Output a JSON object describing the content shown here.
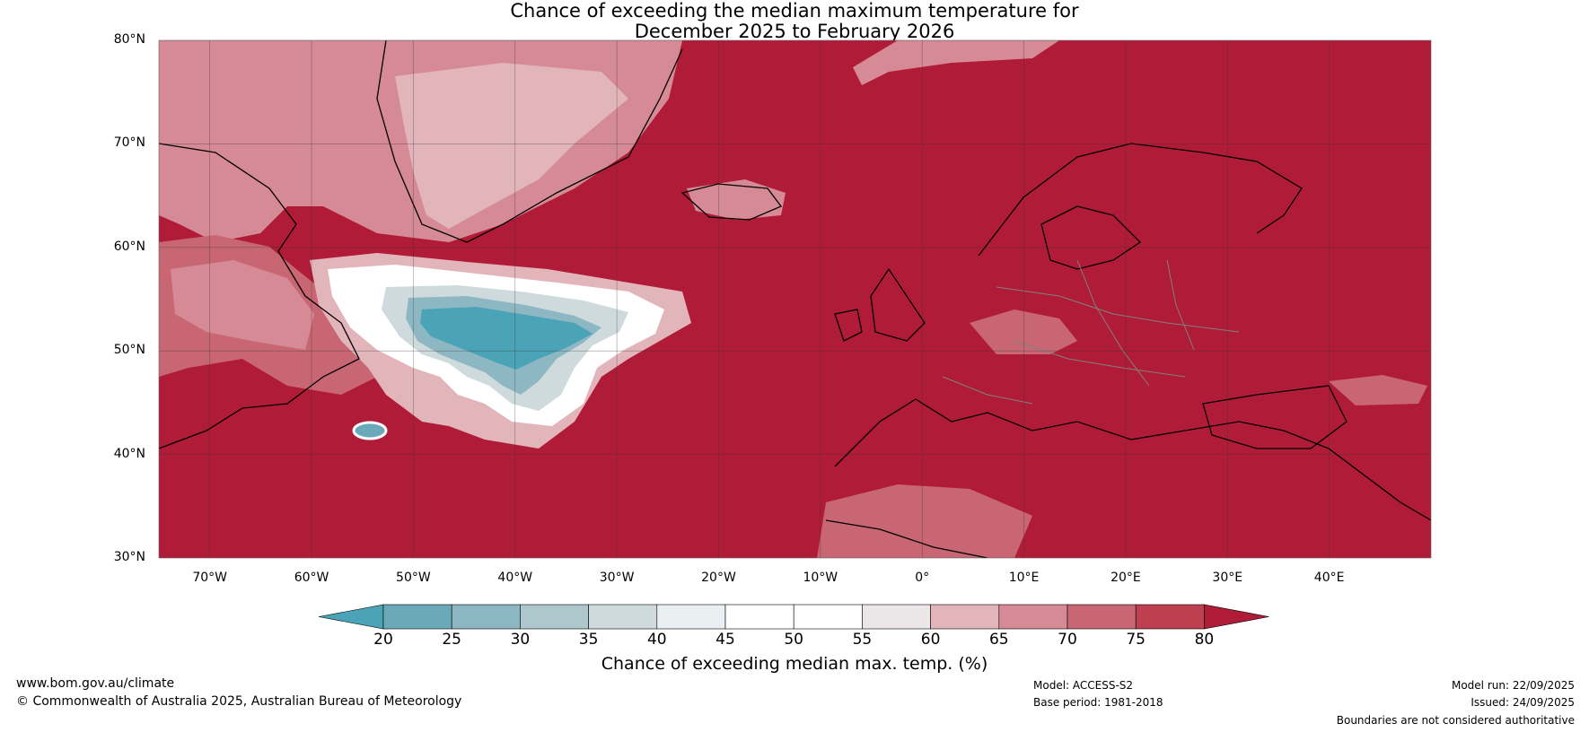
{
  "title": {
    "line1": "Chance of exceeding the median maximum temperature for",
    "line2": "December 2025 to February 2026"
  },
  "map": {
    "region": "North Atlantic and Europe",
    "lat_labels": [
      "80°N",
      "70°N",
      "60°N",
      "50°N",
      "40°N",
      "30°N"
    ],
    "lon_labels": [
      "70°W",
      "60°W",
      "50°W",
      "40°W",
      "30°W",
      "20°W",
      "10°W",
      "0°",
      "10°E",
      "20°E",
      "30°E",
      "40°E"
    ],
    "lat_range": [
      30,
      80
    ],
    "lon_range": [
      -75,
      50
    ],
    "background_color": "#b01c37",
    "coast_color": "#000000",
    "border_color": "#808080"
  },
  "colorbar": {
    "ticks": [
      "20",
      "25",
      "30",
      "35",
      "40",
      "45",
      "50",
      "55",
      "60",
      "65",
      "70",
      "75",
      "80"
    ],
    "colors": [
      "#4aa3b7",
      "#6aaab8",
      "#8db7c3",
      "#adc7cd",
      "#cfdadd",
      "#eaf0f1",
      "#ffffff",
      "#ffffff",
      "#ebe7e8",
      "#e2b5bb",
      "#d68a95",
      "#c86773",
      "#bd3f50"
    ],
    "under_color": "#4aa3b7",
    "over_color": "#b01c37",
    "label": "Chance of exceeding median max. temp. (%)"
  },
  "footer": {
    "url": "www.bom.gov.au/climate",
    "copyright": "© Commonwealth of Australia 2025, Australian Bureau of Meteorology",
    "model": "Model: ACCESS-S2",
    "base_period": "Base period: 1981-2018",
    "model_run": "Model run: 22/09/2025",
    "issued": "Issued: 24/09/2025",
    "disclaimer": "Boundaries are not considered authoritative"
  }
}
